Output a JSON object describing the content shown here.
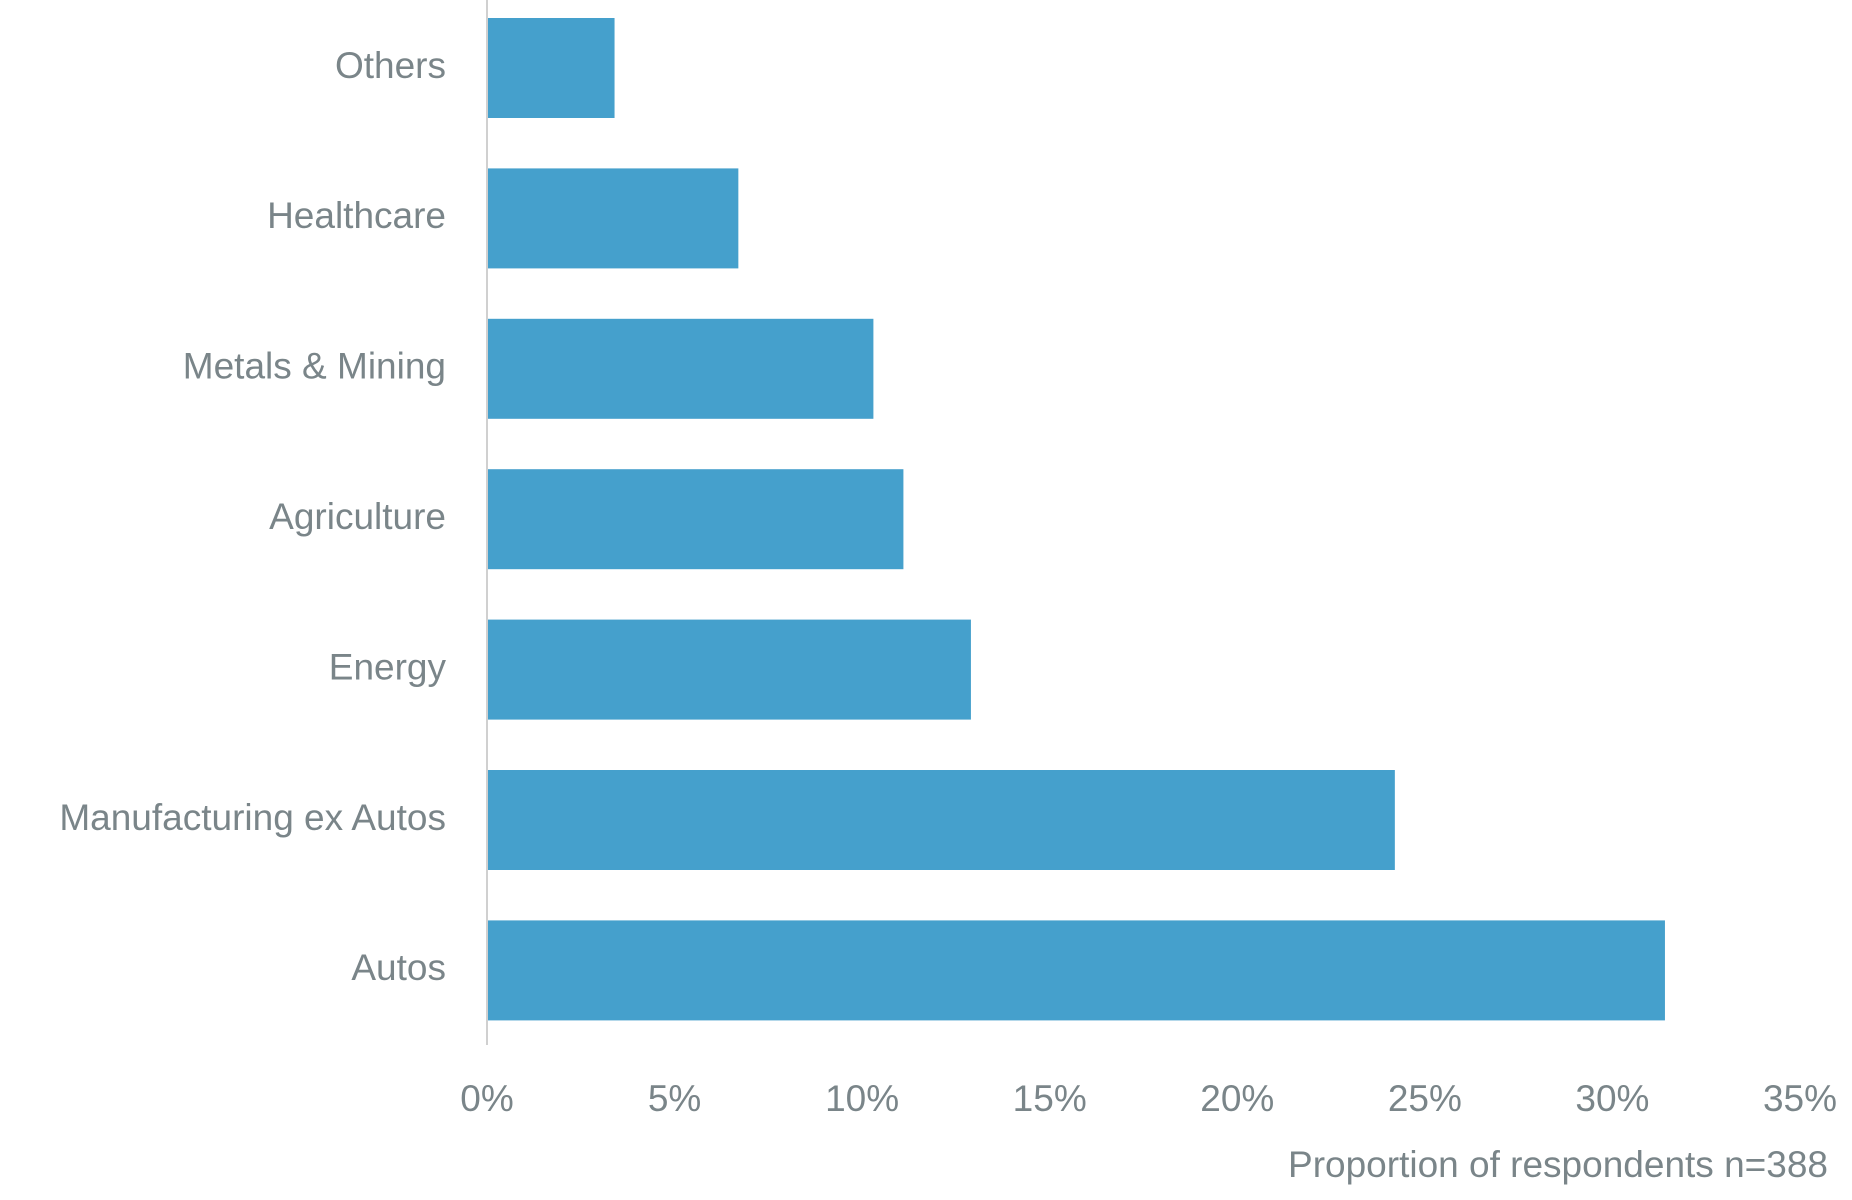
{
  "chart_data": {
    "type": "hbar",
    "categories": [
      "Others",
      "Healthcare",
      "Metals & Mining",
      "Agriculture",
      "Energy",
      "Manufacturing ex Autos",
      "Autos"
    ],
    "values": [
      3.4,
      6.7,
      10.3,
      11.1,
      12.9,
      24.2,
      31.4
    ],
    "color": "#45a0cc",
    "xlim": [
      0,
      35
    ],
    "xticks": [
      {
        "value": 0,
        "label": "0%"
      },
      {
        "value": 5,
        "label": "5%"
      },
      {
        "value": 10,
        "label": "10%"
      },
      {
        "value": 15,
        "label": "15%"
      },
      {
        "value": 20,
        "label": "20%"
      },
      {
        "value": 25,
        "label": "25%"
      },
      {
        "value": 30,
        "label": "30%"
      },
      {
        "value": 35,
        "label": "35%"
      }
    ],
    "xlabel": "Proportion of respondents n=388"
  }
}
